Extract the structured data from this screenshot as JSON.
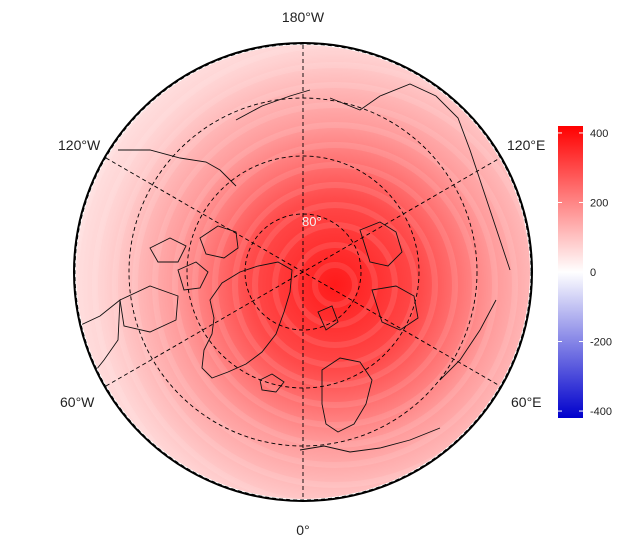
{
  "map": {
    "projection": "north-polar-stereographic",
    "longitude_labels": {
      "top": "180°W",
      "upper_left": "120°W",
      "upper_right": "120°E",
      "lower_left": "60°W",
      "lower_right": "60°E",
      "bottom": "0°"
    },
    "latitude_label": "80°",
    "graticule": {
      "style": "dashed",
      "color": "#000000"
    },
    "field": {
      "description_units": "none shown",
      "center_value": 400,
      "edge_value": 40
    }
  },
  "colorbar": {
    "min": -420,
    "max": 420,
    "ticks": [
      "400",
      "200",
      "0",
      "-200",
      "-400"
    ],
    "tick_values": [
      400,
      200,
      0,
      -200,
      -400
    ],
    "colors": {
      "high": "#ff0000",
      "mid": "#ffffff",
      "low": "#0000cc"
    }
  }
}
